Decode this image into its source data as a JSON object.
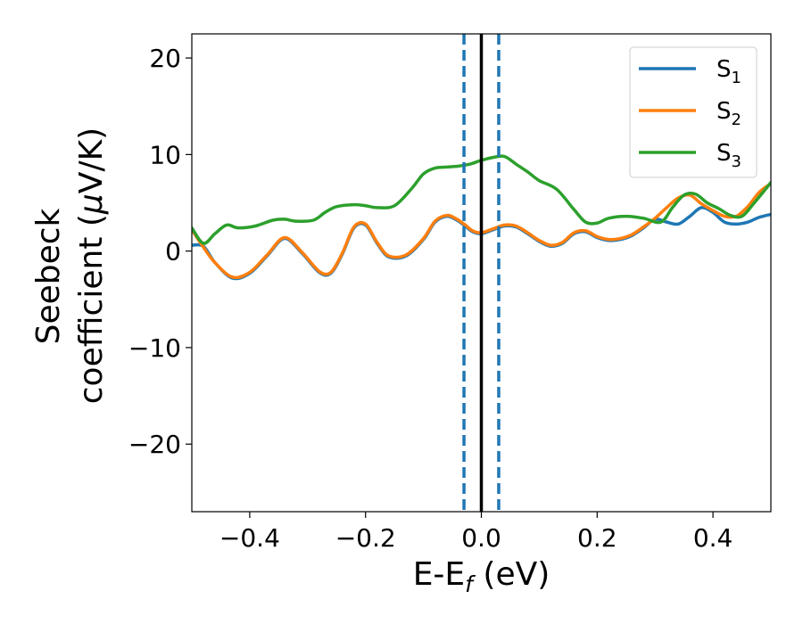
{
  "chart_data": {
    "type": "line",
    "xlabel": "E-E",
    "xlabel_sub": "f",
    "xlabel_unit": " (eV)",
    "ylabel_line1": "Seebeck",
    "ylabel_line2_pre": "coefficient  (",
    "ylabel_mu": "μ",
    "ylabel_line2_post": "V/K)",
    "xlim": [
      -0.5,
      0.5
    ],
    "ylim": [
      -27,
      22.5
    ],
    "xticks": [
      -0.4,
      -0.2,
      0.0,
      0.2,
      0.4
    ],
    "xtick_labels": [
      "−0.4",
      "−0.2",
      "0.0",
      "0.2",
      "0.4"
    ],
    "yticks": [
      -20,
      -10,
      0,
      10,
      20
    ],
    "ytick_labels": [
      "−20",
      "−10",
      "0",
      "10",
      "20"
    ],
    "vlines": [
      {
        "x": -0.03,
        "style": "dashed",
        "color": "#1f77b4"
      },
      {
        "x": 0.0,
        "style": "solid",
        "color": "#000000"
      },
      {
        "x": 0.03,
        "style": "dashed",
        "color": "#1f77b4"
      }
    ],
    "legend_position": "top-right",
    "series": [
      {
        "name": "S",
        "sub": "1",
        "color": "#1f77b4",
        "x": [
          -0.5,
          -0.48,
          -0.46,
          -0.43,
          -0.4,
          -0.37,
          -0.34,
          -0.31,
          -0.28,
          -0.26,
          -0.24,
          -0.22,
          -0.2,
          -0.18,
          -0.16,
          -0.13,
          -0.1,
          -0.08,
          -0.06,
          -0.045,
          -0.03,
          -0.015,
          0.0,
          0.02,
          0.04,
          0.06,
          0.08,
          0.1,
          0.12,
          0.14,
          0.16,
          0.18,
          0.2,
          0.22,
          0.24,
          0.26,
          0.28,
          0.3,
          0.32,
          0.34,
          0.36,
          0.38,
          0.4,
          0.42,
          0.44,
          0.46,
          0.48,
          0.5
        ],
        "y": [
          0.6,
          0.5,
          -1.2,
          -2.8,
          -2.3,
          -0.5,
          1.3,
          -0.2,
          -2.2,
          -2.3,
          -0.3,
          2.4,
          2.7,
          0.8,
          -0.6,
          -0.5,
          1.2,
          3.0,
          3.6,
          3.3,
          2.7,
          2.0,
          1.8,
          2.2,
          2.6,
          2.5,
          1.8,
          1.0,
          0.5,
          0.8,
          1.8,
          2.0,
          1.4,
          1.1,
          1.2,
          1.6,
          2.4,
          3.3,
          3.0,
          2.8,
          3.6,
          4.5,
          4.0,
          3.0,
          2.8,
          3.0,
          3.5,
          3.8
        ]
      },
      {
        "name": "S",
        "sub": "2",
        "color": "#ff7f0e",
        "x": [
          -0.5,
          -0.48,
          -0.46,
          -0.43,
          -0.4,
          -0.37,
          -0.34,
          -0.31,
          -0.28,
          -0.26,
          -0.24,
          -0.22,
          -0.2,
          -0.18,
          -0.16,
          -0.13,
          -0.1,
          -0.08,
          -0.06,
          -0.045,
          -0.03,
          -0.015,
          0.0,
          0.02,
          0.04,
          0.06,
          0.08,
          0.1,
          0.12,
          0.14,
          0.16,
          0.18,
          0.2,
          0.22,
          0.24,
          0.26,
          0.28,
          0.3,
          0.32,
          0.34,
          0.36,
          0.38,
          0.4,
          0.42,
          0.44,
          0.46,
          0.48,
          0.5
        ],
        "y": [
          2.2,
          0.4,
          -1.2,
          -2.7,
          -2.2,
          -0.4,
          1.4,
          -0.1,
          -2.1,
          -2.2,
          -0.2,
          2.5,
          2.8,
          0.9,
          -0.5,
          -0.4,
          1.3,
          3.1,
          3.7,
          3.4,
          2.8,
          2.1,
          1.9,
          2.3,
          2.7,
          2.6,
          1.9,
          1.1,
          0.6,
          0.9,
          1.9,
          2.1,
          1.5,
          1.2,
          1.3,
          1.7,
          2.5,
          3.4,
          4.5,
          5.5,
          5.8,
          4.9,
          4.2,
          3.6,
          3.6,
          4.6,
          6.1,
          7.0
        ]
      },
      {
        "name": "S",
        "sub": "3",
        "color": "#2ca02c",
        "x": [
          -0.5,
          -0.48,
          -0.46,
          -0.44,
          -0.42,
          -0.39,
          -0.36,
          -0.34,
          -0.32,
          -0.29,
          -0.27,
          -0.25,
          -0.22,
          -0.2,
          -0.18,
          -0.15,
          -0.12,
          -0.1,
          -0.08,
          -0.06,
          -0.04,
          -0.02,
          0.0,
          0.02,
          0.04,
          0.06,
          0.08,
          0.1,
          0.13,
          0.16,
          0.18,
          0.2,
          0.22,
          0.25,
          0.28,
          0.31,
          0.33,
          0.35,
          0.37,
          0.39,
          0.41,
          0.43,
          0.45,
          0.47,
          0.5
        ],
        "y": [
          2.4,
          0.8,
          1.8,
          2.7,
          2.4,
          2.6,
          3.2,
          3.3,
          3.1,
          3.2,
          4.0,
          4.6,
          4.8,
          4.7,
          4.5,
          4.7,
          6.5,
          8.0,
          8.6,
          8.7,
          8.8,
          9.0,
          9.4,
          9.7,
          9.8,
          9.0,
          8.2,
          7.3,
          6.4,
          4.3,
          3.0,
          2.9,
          3.4,
          3.6,
          3.4,
          3.0,
          4.5,
          5.8,
          5.9,
          5.0,
          4.4,
          3.7,
          3.6,
          4.9,
          7.1
        ]
      }
    ]
  }
}
